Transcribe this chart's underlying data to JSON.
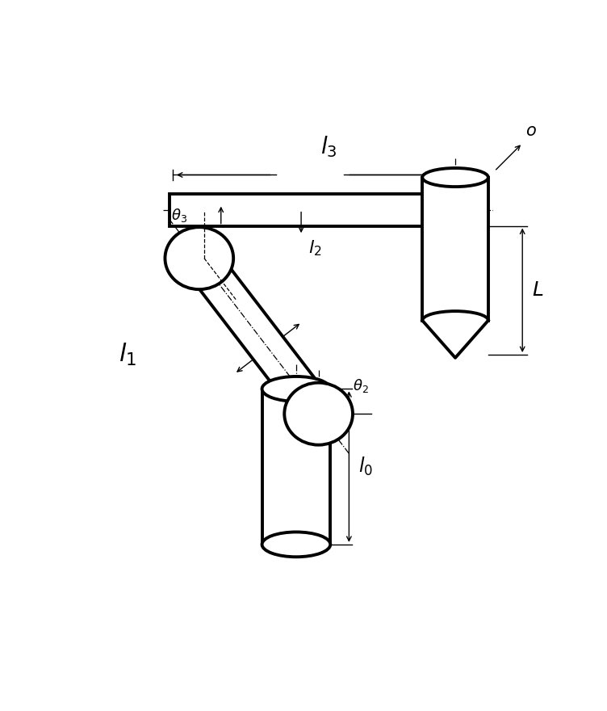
{
  "bg_color": "#ffffff",
  "line_color": "#000000",
  "thick_lw": 2.8,
  "thin_lw": 1.0,
  "dashcenter_lw": 0.9,
  "figsize": [
    7.52,
    8.8
  ],
  "dpi": 100,
  "labels": {
    "l0": "$\\it{l}_0$",
    "l1": "$\\it{l}_1$",
    "l2": "$\\it{l}_2$",
    "l3": "$\\it{l}_3$",
    "L": "$\\it{L}$",
    "o": "$o$",
    "theta2": "$\\theta_2$",
    "theta3": "$\\theta_3$"
  }
}
